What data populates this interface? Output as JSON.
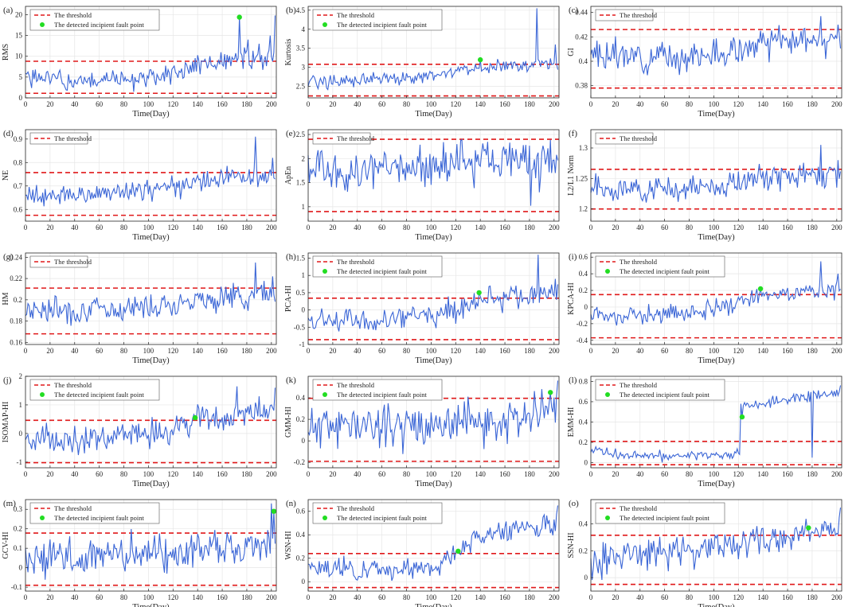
{
  "figure": {
    "columns": 3,
    "rows": 5
  },
  "colors": {
    "signal": "#3b66d6",
    "threshold": "#e0191a",
    "fault_point": "#22dd22",
    "grid": "#e6e6e6",
    "axis": "#262626"
  },
  "legend_labels": {
    "threshold": "The threshold",
    "fault": "The detected incipient fault point"
  },
  "chart_data": [
    {
      "type": "line",
      "panel_label": "(a)",
      "ylabel": "RMS",
      "xlabel": "Time(Day)",
      "xlim": [
        0,
        204
      ],
      "ylim": [
        0,
        22
      ],
      "yticks": [
        0,
        5,
        10,
        15,
        20
      ],
      "upper_threshold": 8.8,
      "lower_threshold": 1.1,
      "fault_point": {
        "x": 174,
        "y": 19.4
      },
      "series": {
        "base": [
          5,
          4,
          4.2,
          4.8,
          7.5,
          8.8,
          9.5
        ],
        "noise": 1.3,
        "spikes": [
          [
            174,
            19.4
          ],
          [
            181,
            14
          ],
          [
            190,
            13
          ],
          [
            199,
            15
          ],
          [
            203,
            19.8
          ]
        ],
        "seed": 1
      }
    },
    {
      "type": "line",
      "panel_label": "(b)",
      "ylabel": "Kurtosis",
      "xlabel": "Time(Day)",
      "xlim": [
        0,
        204
      ],
      "ylim": [
        2.2,
        4.6
      ],
      "yticks": [
        2.5,
        3,
        3.5,
        4,
        4.5
      ],
      "upper_threshold": 3.08,
      "lower_threshold": 2.25,
      "fault_point": {
        "x": 140,
        "y": 3.2
      },
      "series": {
        "base": [
          2.65,
          2.65,
          2.7,
          2.75,
          3,
          3.05,
          3.1
        ],
        "noise": 0.09,
        "spikes": [
          [
            186,
            4.55
          ],
          [
            201,
            3.6
          ]
        ],
        "seed": 2
      }
    },
    {
      "type": "line",
      "panel_label": "(c)",
      "ylabel": "GI",
      "xlabel": "Time(Day)",
      "xlim": [
        0,
        204
      ],
      "ylim": [
        0.37,
        0.445
      ],
      "yticks": [
        0.38,
        0.4,
        0.42,
        0.44
      ],
      "upper_threshold": 0.426,
      "lower_threshold": 0.378,
      "fault_point": null,
      "series": {
        "base": [
          0.405,
          0.404,
          0.404,
          0.405,
          0.413,
          0.417,
          0.418
        ],
        "noise": 0.006,
        "spikes": [
          [
            187,
            0.437
          ],
          [
            201,
            0.43
          ]
        ],
        "seed": 3
      }
    },
    {
      "type": "line",
      "panel_label": "(d)",
      "ylabel": "NE",
      "xlabel": "Time(Day)",
      "xlim": [
        0,
        204
      ],
      "ylim": [
        0.55,
        0.94
      ],
      "yticks": [
        0.6,
        0.7,
        0.8,
        0.9
      ],
      "upper_threshold": 0.757,
      "lower_threshold": 0.575,
      "fault_point": null,
      "series": {
        "base": [
          0.665,
          0.66,
          0.67,
          0.68,
          0.71,
          0.735,
          0.745
        ],
        "noise": 0.022,
        "spikes": [
          [
            187,
            0.91
          ],
          [
            201,
            0.82
          ]
        ],
        "seed": 4
      }
    },
    {
      "type": "line",
      "panel_label": "(e)",
      "ylabel": "ApEn",
      "xlabel": "Time(Day)",
      "xlim": [
        0,
        204
      ],
      "ylim": [
        0.7,
        2.6
      ],
      "yticks": [
        1,
        1.5,
        2,
        2.5
      ],
      "upper_threshold": 2.4,
      "lower_threshold": 0.9,
      "fault_point": null,
      "series": {
        "base": [
          1.75,
          1.7,
          1.75,
          1.8,
          2,
          2,
          2
        ],
        "noise": 0.22,
        "spikes": [
          [
            181,
            1.02
          ],
          [
            188,
            1.3
          ],
          [
            201,
            1.7
          ]
        ],
        "seed": 5
      }
    },
    {
      "type": "line",
      "panel_label": "(f)",
      "ylabel": "L2/L1 Norm",
      "xlabel": "Time(Day)",
      "xlim": [
        0,
        204
      ],
      "ylim": [
        1.18,
        1.33
      ],
      "yticks": [
        1.2,
        1.25,
        1.3
      ],
      "upper_threshold": 1.265,
      "lower_threshold": 1.2,
      "fault_point": null,
      "series": {
        "base": [
          1.235,
          1.232,
          1.233,
          1.236,
          1.25,
          1.255,
          1.258
        ],
        "noise": 0.01,
        "spikes": [
          [
            187,
            1.305
          ],
          [
            201,
            1.28
          ]
        ],
        "seed": 6
      }
    },
    {
      "type": "line",
      "panel_label": "(g)",
      "ylabel": "HM",
      "xlabel": "Time(Day)",
      "xlim": [
        0,
        204
      ],
      "ylim": [
        0.158,
        0.244
      ],
      "yticks": [
        0.16,
        0.18,
        0.2,
        0.22,
        0.24
      ],
      "upper_threshold": 0.211,
      "lower_threshold": 0.168,
      "fault_point": null,
      "series": {
        "base": [
          0.192,
          0.19,
          0.191,
          0.194,
          0.2,
          0.203,
          0.205
        ],
        "noise": 0.006,
        "spikes": [
          [
            187,
            0.235
          ],
          [
            201,
            0.222
          ]
        ],
        "seed": 7
      }
    },
    {
      "type": "line",
      "panel_label": "(h)",
      "ylabel": "PCA-HI",
      "xlabel": "Time(Day)",
      "xlim": [
        0,
        204
      ],
      "ylim": [
        -1,
        1.65
      ],
      "yticks": [
        -1,
        -0.5,
        0,
        0.5,
        1,
        1.5
      ],
      "upper_threshold": 0.34,
      "lower_threshold": -0.86,
      "fault_point": {
        "x": 139,
        "y": 0.5
      },
      "series": {
        "base": [
          -0.32,
          -0.35,
          -0.3,
          -0.2,
          0.25,
          0.4,
          0.5
        ],
        "noise": 0.17,
        "spikes": [
          [
            187,
            1.6
          ],
          [
            201,
            0.9
          ]
        ],
        "seed": 8
      }
    },
    {
      "type": "line",
      "panel_label": "(i)",
      "ylabel": "KPCA-HI",
      "xlabel": "Time(Day)",
      "xlim": [
        0,
        204
      ],
      "ylim": [
        -0.45,
        0.65
      ],
      "yticks": [
        -0.4,
        -0.2,
        0,
        0.2,
        0.4,
        0.6
      ],
      "upper_threshold": 0.15,
      "lower_threshold": -0.37,
      "fault_point": {
        "x": 138,
        "y": 0.22
      },
      "series": {
        "base": [
          -0.1,
          -0.1,
          -0.08,
          -0.05,
          0.13,
          0.18,
          0.22
        ],
        "noise": 0.06,
        "spikes": [
          [
            187,
            0.55
          ],
          [
            201,
            0.4
          ]
        ],
        "seed": 9
      }
    },
    {
      "type": "line",
      "panel_label": "(j)",
      "ylabel": "ISOMAP-HI",
      "xlabel": "Time(Day)",
      "xlim": [
        0,
        204
      ],
      "ylim": [
        -1.2,
        2
      ],
      "yticks": [
        -1,
        0,
        1,
        2
      ],
      "upper_threshold": 0.46,
      "lower_threshold": -1.02,
      "fault_point": {
        "x": 138,
        "y": 0.55
      },
      "series": {
        "base": [
          -0.2,
          -0.2,
          -0.15,
          -0.05,
          0.4,
          0.55,
          0.7
        ],
        "noise": 0.25,
        "spikes": [
          [
            172,
            1.65
          ],
          [
            190,
            1.3
          ],
          [
            203,
            1.6
          ]
        ],
        "seed": 10
      }
    },
    {
      "type": "line",
      "panel_label": "(k)",
      "ylabel": "GMM-HI",
      "xlabel": "Time(Day)",
      "xlim": [
        0,
        204
      ],
      "ylim": [
        -0.25,
        0.6
      ],
      "yticks": [
        -0.2,
        0,
        0.2,
        0.4
      ],
      "upper_threshold": 0.395,
      "lower_threshold": -0.19,
      "fault_point": {
        "x": 197,
        "y": 0.45
      },
      "series": {
        "base": [
          0.12,
          0.15,
          0.15,
          0.15,
          0.16,
          0.18,
          0.3
        ],
        "noise": 0.1,
        "spikes": [
          [
            190,
            0.48
          ],
          [
            203,
            0.56
          ]
        ],
        "seed": 11
      }
    },
    {
      "type": "line",
      "panel_label": "(l)",
      "ylabel": "EMM-HI",
      "xlabel": "Time(Day)",
      "xlim": [
        0,
        204
      ],
      "ylim": [
        -0.05,
        0.85
      ],
      "yticks": [
        0,
        0.2,
        0.4,
        0.6,
        0.8
      ],
      "upper_threshold": 0.21,
      "lower_threshold": -0.02,
      "fault_point": {
        "x": 123,
        "y": 0.45
      },
      "series": {
        "base": [
          0.12,
          0.08,
          0.07,
          0.07,
          0.08,
          0.08,
          0.55,
          0.62,
          0.7
        ],
        "noise": 0.025,
        "spikes": [
          [
            180,
            0.05
          ],
          [
            203,
            0.76
          ]
        ],
        "seed": 12,
        "jump_at": 122
      },
      "kind": "jump"
    },
    {
      "type": "line",
      "panel_label": "(m)",
      "ylabel": "GCV-HI",
      "xlabel": "Time(Day)",
      "xlim": [
        0,
        204
      ],
      "ylim": [
        -0.12,
        0.35
      ],
      "yticks": [
        -0.1,
        0,
        0.1,
        0.2,
        0.3
      ],
      "upper_threshold": 0.178,
      "lower_threshold": -0.09,
      "fault_point": {
        "x": 202,
        "y": 0.29
      },
      "series": {
        "base": [
          0.05,
          0.06,
          0.07,
          0.07,
          0.08,
          0.09,
          0.12
        ],
        "noise": 0.05,
        "spikes": [
          [
            200,
            0.33
          ]
        ],
        "seed": 13
      }
    },
    {
      "type": "line",
      "panel_label": "(n)",
      "ylabel": "WSN-HI",
      "xlabel": "Time(Day)",
      "xlim": [
        0,
        204
      ],
      "ylim": [
        -0.08,
        0.7
      ],
      "yticks": [
        0,
        0.2,
        0.4,
        0.6
      ],
      "upper_threshold": 0.24,
      "lower_threshold": -0.05,
      "fault_point": {
        "x": 122,
        "y": 0.26
      },
      "series": {
        "base": [
          0.12,
          0.1,
          0.1,
          0.12,
          0.35,
          0.45,
          0.5
        ],
        "noise": 0.045,
        "spikes": [
          [
            203,
            0.65
          ]
        ],
        "seed": 14
      }
    },
    {
      "type": "line",
      "panel_label": "(o)",
      "ylabel": "SSN-HI",
      "xlabel": "Time(Day)",
      "xlim": [
        0,
        204
      ],
      "ylim": [
        -0.1,
        0.58
      ],
      "yticks": [
        0,
        0.2,
        0.4
      ],
      "upper_threshold": 0.315,
      "lower_threshold": -0.05,
      "fault_point": {
        "x": 177,
        "y": 0.37
      },
      "series": {
        "base": [
          0.12,
          0.17,
          0.2,
          0.24,
          0.27,
          0.32,
          0.42
        ],
        "noise": 0.06,
        "spikes": [
          [
            203,
            0.52
          ]
        ],
        "seed": 15
      }
    }
  ]
}
